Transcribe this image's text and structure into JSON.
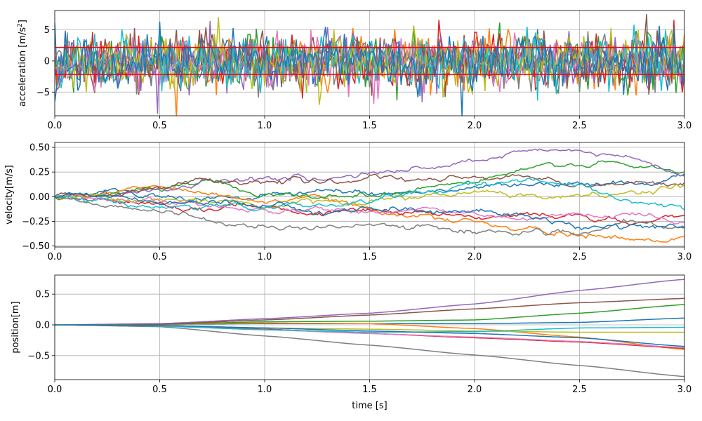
{
  "chart_data": [
    {
      "type": "line",
      "ylabel": "acceleration [m/s",
      "ylabel_sup": "2",
      "ylabel_close": "]",
      "xlim": [
        0,
        3.0
      ],
      "ylim": [
        -8.8,
        8.1
      ],
      "xticks": [
        "0.0",
        "0.5",
        "1.0",
        "1.5",
        "2.0",
        "2.5",
        "3.0"
      ],
      "yticks": [
        {
          "v": -5,
          "label": "−5"
        },
        {
          "v": 0,
          "label": "0"
        },
        {
          "v": 5,
          "label": "5"
        }
      ],
      "grid": true,
      "noise_series_count": 11,
      "noise_std": 2.2,
      "threshold_lines": [
        2.17,
        -2.17
      ],
      "threshold_color": "#ff0000"
    },
    {
      "type": "line",
      "ylabel": "velocity[m/s]",
      "xlim": [
        0,
        3.0
      ],
      "ylim": [
        -0.51,
        0.55
      ],
      "xticks": [
        "0.0",
        "0.5",
        "1.0",
        "1.5",
        "2.0",
        "2.5",
        "3.0"
      ],
      "yticks": [
        {
          "v": -0.5,
          "label": "−0.50"
        },
        {
          "v": -0.25,
          "label": "−0.25"
        },
        {
          "v": 0,
          "label": "0.00"
        },
        {
          "v": 0.25,
          "label": "0.25"
        },
        {
          "v": 0.5,
          "label": "0.50"
        }
      ],
      "grid": true,
      "x": [
        0,
        0.25,
        0.5,
        0.75,
        1.0,
        1.25,
        1.5,
        1.75,
        2.0,
        2.25,
        2.5,
        2.75,
        3.0
      ],
      "series": [
        {
          "color": "#1f77b4",
          "values": [
            0,
            0.05,
            0.0,
            -0.02,
            0.02,
            0.05,
            0.05,
            0.05,
            0.1,
            0.12,
            0.12,
            0.12,
            0.22
          ]
        },
        {
          "color": "#ff7f0e",
          "values": [
            0,
            0.05,
            0.1,
            0.03,
            -0.05,
            -0.03,
            -0.1,
            -0.2,
            -0.25,
            -0.35,
            -0.4,
            -0.42,
            -0.43
          ]
        },
        {
          "color": "#2ca02c",
          "values": [
            0,
            0.04,
            0.08,
            0.15,
            0.05,
            0.0,
            0.02,
            0.1,
            0.15,
            0.27,
            0.35,
            0.3,
            0.24
          ]
        },
        {
          "color": "#d62728",
          "values": [
            0,
            -0.05,
            -0.08,
            -0.1,
            -0.1,
            -0.15,
            -0.13,
            -0.15,
            -0.2,
            -0.18,
            -0.2,
            -0.28,
            -0.2
          ]
        },
        {
          "color": "#9467bd",
          "values": [
            0,
            0.03,
            0.08,
            0.15,
            0.2,
            0.18,
            0.22,
            0.28,
            0.34,
            0.45,
            0.47,
            0.38,
            0.23
          ]
        },
        {
          "color": "#8c564b",
          "values": [
            0,
            0.02,
            0.1,
            0.18,
            0.16,
            0.15,
            0.18,
            0.15,
            0.2,
            0.2,
            0.12,
            0.14,
            0.15
          ]
        },
        {
          "color": "#e377c2",
          "values": [
            0,
            -0.04,
            -0.06,
            -0.1,
            -0.12,
            -0.12,
            -0.15,
            -0.12,
            -0.18,
            -0.25,
            -0.2,
            -0.2,
            -0.25
          ]
        },
        {
          "color": "#7f7f7f",
          "values": [
            0,
            -0.07,
            -0.15,
            -0.25,
            -0.3,
            -0.33,
            -0.3,
            -0.3,
            -0.35,
            -0.35,
            -0.38,
            -0.28,
            -0.33
          ]
        },
        {
          "color": "#bcbd22",
          "values": [
            0,
            0.0,
            -0.02,
            -0.05,
            -0.1,
            -0.05,
            -0.05,
            0.0,
            0.03,
            0.0,
            0.0,
            0.03,
            0.12
          ]
        },
        {
          "color": "#17becf",
          "values": [
            0,
            -0.05,
            -0.12,
            -0.08,
            -0.12,
            -0.08,
            -0.03,
            0.05,
            0.13,
            0.18,
            0.1,
            -0.05,
            -0.1
          ]
        },
        {
          "color": "#1f77b4",
          "values": [
            0,
            0.0,
            -0.05,
            -0.08,
            -0.1,
            -0.12,
            -0.12,
            -0.15,
            -0.15,
            -0.2,
            -0.3,
            -0.3,
            -0.3
          ]
        }
      ]
    },
    {
      "type": "line",
      "ylabel": "position[m]",
      "xlabel": "time [s]",
      "xlim": [
        0,
        3.0
      ],
      "ylim": [
        -0.89,
        0.81
      ],
      "xticks": [
        "0.0",
        "0.5",
        "1.0",
        "1.5",
        "2.0",
        "2.5",
        "3.0"
      ],
      "yticks": [
        {
          "v": -0.5,
          "label": "−0.5"
        },
        {
          "v": 0,
          "label": "0.0"
        },
        {
          "v": 0.5,
          "label": "0.5"
        }
      ],
      "grid": true,
      "x": [
        0,
        0.5,
        1.0,
        1.5,
        2.0,
        2.5,
        3.0
      ],
      "series": [
        {
          "color": "#1f77b4",
          "values": [
            0,
            0.01,
            0.02,
            0.02,
            0.02,
            0.04,
            0.11
          ]
        },
        {
          "color": "#ff7f0e",
          "values": [
            0,
            0.01,
            0.03,
            0.02,
            -0.06,
            -0.2,
            -0.4
          ]
        },
        {
          "color": "#2ca02c",
          "values": [
            0,
            0.01,
            0.05,
            0.06,
            0.08,
            0.19,
            0.33
          ]
        },
        {
          "color": "#d62728",
          "values": [
            0,
            -0.02,
            -0.07,
            -0.14,
            -0.21,
            -0.28,
            -0.38
          ]
        },
        {
          "color": "#9467bd",
          "values": [
            0,
            0.02,
            0.1,
            0.19,
            0.34,
            0.56,
            0.74
          ]
        },
        {
          "color": "#8c564b",
          "values": [
            0,
            0.01,
            0.08,
            0.16,
            0.26,
            0.36,
            0.43
          ]
        },
        {
          "color": "#e377c2",
          "values": [
            0,
            -0.02,
            -0.08,
            -0.14,
            -0.2,
            -0.27,
            -0.37
          ]
        },
        {
          "color": "#7f7f7f",
          "values": [
            0,
            -0.03,
            -0.18,
            -0.33,
            -0.49,
            -0.66,
            -0.84
          ]
        },
        {
          "color": "#bcbd22",
          "values": [
            0,
            -0.01,
            -0.05,
            -0.07,
            -0.1,
            -0.12,
            -0.12
          ]
        },
        {
          "color": "#17becf",
          "values": [
            0,
            -0.02,
            -0.08,
            -0.12,
            -0.11,
            -0.05,
            -0.04
          ]
        },
        {
          "color": "#1f77b4",
          "values": [
            0,
            -0.01,
            -0.05,
            -0.1,
            -0.14,
            -0.21,
            -0.35
          ]
        }
      ]
    }
  ],
  "palette": [
    "#1f77b4",
    "#ff7f0e",
    "#2ca02c",
    "#d62728",
    "#9467bd",
    "#8c564b",
    "#e377c2",
    "#7f7f7f",
    "#bcbd22",
    "#17becf",
    "#1f77b4"
  ]
}
